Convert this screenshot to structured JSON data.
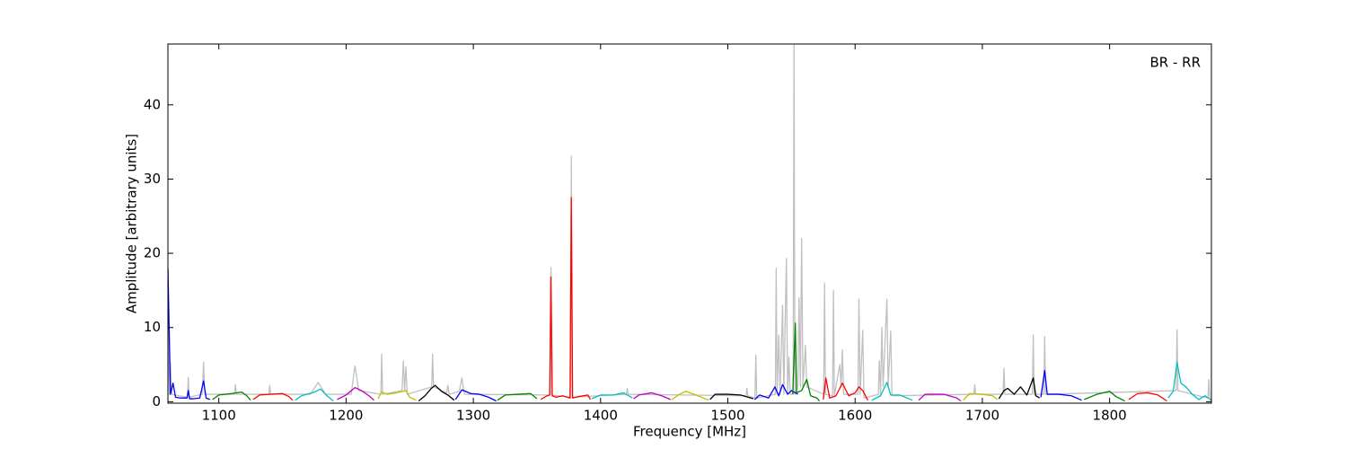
{
  "chart_data": {
    "type": "line",
    "annotation": "BR - RR",
    "xlabel": "Frequency [MHz]",
    "ylabel": "Amplitude [arbitrary units]",
    "xlim": [
      1060,
      1880
    ],
    "ylim": [
      -0.2,
      48.2
    ],
    "xticks": [
      1100,
      1200,
      1300,
      1400,
      1500,
      1600,
      1700,
      1800
    ],
    "yticks": [
      0,
      10,
      20,
      30,
      40
    ],
    "series": [
      {
        "color": "#c0c0c0",
        "x": [
          1060,
          1061,
          1062,
          1063,
          1075.3,
          1076,
          1076.7,
          1087,
          1088,
          1089,
          1112.3,
          1113,
          1113.7,
          1139.3,
          1140,
          1140.7,
          1172,
          1178,
          1184,
          1204,
          1207,
          1210,
          1227.3,
          1228,
          1228.7,
          1244,
          1245,
          1246,
          1247,
          1248,
          1267.3,
          1268,
          1268.7,
          1279,
          1280,
          1281,
          1289,
          1291,
          1293,
          1360.3,
          1361,
          1361.7,
          1376.3,
          1377,
          1377.7,
          1420.3,
          1421,
          1421.7,
          1514.3,
          1515,
          1515.7,
          1521.3,
          1522,
          1522.7,
          1537.3,
          1538,
          1538.7,
          1540,
          1541,
          1543,
          1544,
          1546,
          1547,
          1548,
          1549,
          1551.3,
          1552,
          1552.7,
          1555,
          1556,
          1557,
          1558,
          1559,
          1561,
          1562,
          1575.3,
          1576,
          1576.7,
          1582.3,
          1583,
          1583.7,
          1588,
          1589,
          1590,
          1591,
          1602.3,
          1603,
          1604,
          1606,
          1607,
          1618.3,
          1619,
          1620,
          1621,
          1622,
          1625,
          1626,
          1628,
          1629,
          1693.3,
          1694,
          1694.7,
          1716.3,
          1717,
          1717.7,
          1739.3,
          1740,
          1740.7,
          1748.3,
          1749,
          1749.7,
          1852.3,
          1853,
          1853.7,
          1877.3,
          1878,
          1878.7
        ],
        "values": [
          18,
          1,
          5.3,
          1,
          0.6,
          3.3,
          0.6,
          1,
          5.3,
          1,
          1,
          2.3,
          1,
          1,
          2.2,
          1,
          1,
          2.6,
          1,
          1,
          4.8,
          1.5,
          1,
          6.4,
          1,
          1.5,
          5.5,
          1.5,
          4.7,
          1,
          2,
          6.4,
          2,
          1.2,
          2.2,
          1,
          1.4,
          3.2,
          1,
          0.9,
          18.1,
          0.9,
          0.6,
          33.1,
          0.6,
          1,
          1.8,
          1,
          0.8,
          1.8,
          0.8,
          0.5,
          6.3,
          0.5,
          1,
          18,
          1,
          9,
          1,
          13,
          1,
          19.3,
          1,
          6,
          1,
          1,
          48.5,
          1,
          2,
          14,
          2,
          22,
          2,
          7.6,
          2,
          1,
          16,
          1,
          0.8,
          15,
          0.8,
          5,
          2,
          7,
          1,
          1,
          13.8,
          1,
          9.6,
          0.5,
          1,
          5.5,
          1,
          10,
          2,
          13.8,
          2,
          9.5,
          0.8,
          1,
          2.3,
          1,
          1,
          4.5,
          1,
          1,
          9,
          1,
          1,
          8.8,
          1,
          1.5,
          9.7,
          1.5,
          0.5,
          3,
          0.3
        ]
      },
      {
        "color": "#0000ff",
        "x": [
          1060,
          1062,
          1064,
          1066,
          1070,
          1075,
          1076,
          1077,
          1080,
          1085,
          1088,
          1090,
          1093
        ],
        "values": [
          18,
          1,
          2.5,
          0.6,
          0.5,
          0.5,
          1.5,
          0.4,
          0.4,
          0.5,
          2.8,
          0.5,
          0.3
        ]
      },
      {
        "color": "#008000",
        "x": [
          1095,
          1100,
          1110,
          1118,
          1122,
          1125
        ],
        "values": [
          0.3,
          0.9,
          1.1,
          1.3,
          0.8,
          0.2
        ]
      },
      {
        "color": "#ff0000",
        "x": [
          1127,
          1132,
          1140,
          1150,
          1155,
          1158
        ],
        "values": [
          0.3,
          0.9,
          1.0,
          1.1,
          0.7,
          0.2
        ]
      },
      {
        "color": "#00bfbf",
        "x": [
          1160,
          1165,
          1175,
          1180,
          1185,
          1190
        ],
        "values": [
          0.2,
          0.8,
          1.3,
          1.7,
          0.8,
          0.1
        ]
      },
      {
        "color": "#bf00bf",
        "x": [
          1193,
          1200,
          1207,
          1212,
          1218,
          1222
        ],
        "values": [
          0.3,
          0.9,
          1.9,
          1.5,
          0.8,
          0.2
        ]
      },
      {
        "color": "#bfbf00",
        "x": [
          1225,
          1228,
          1232,
          1240,
          1247,
          1250,
          1255
        ],
        "values": [
          0.4,
          1.3,
          1.0,
          1.2,
          1.5,
          0.6,
          0.2
        ]
      },
      {
        "color": "#000000",
        "x": [
          1257,
          1262,
          1267,
          1270,
          1275,
          1280,
          1285
        ],
        "values": [
          0.1,
          0.8,
          1.8,
          2.2,
          1.4,
          0.9,
          0.2
        ]
      },
      {
        "color": "#0000ff",
        "x": [
          1286,
          1291,
          1298,
          1305,
          1312,
          1318
        ],
        "values": [
          0.3,
          1.6,
          1.1,
          1.0,
          0.6,
          0.1
        ]
      },
      {
        "color": "#008000",
        "x": [
          1319,
          1325,
          1335,
          1345,
          1350
        ],
        "values": [
          0.2,
          0.9,
          1.0,
          1.1,
          0.4
        ]
      },
      {
        "color": "#ff0000",
        "x": [
          1353,
          1358,
          1360,
          1361,
          1362,
          1365,
          1370,
          1376,
          1377,
          1378,
          1383,
          1390,
          1392
        ],
        "values": [
          0.3,
          0.8,
          0.9,
          16.8,
          0.8,
          0.6,
          0.8,
          0.5,
          27.5,
          0.5,
          0.7,
          0.9,
          0.3
        ]
      },
      {
        "color": "#00bfbf",
        "x": [
          1393,
          1400,
          1410,
          1418,
          1425
        ],
        "values": [
          0.4,
          0.9,
          0.9,
          1.2,
          0.5
        ]
      },
      {
        "color": "#bf00bf",
        "x": [
          1426,
          1430,
          1440,
          1448,
          1455
        ],
        "values": [
          0.4,
          0.9,
          1.2,
          0.8,
          0.3
        ]
      },
      {
        "color": "#bfbf00",
        "x": [
          1456,
          1462,
          1467,
          1475,
          1485
        ],
        "values": [
          0.3,
          1.0,
          1.4,
          0.9,
          0.2
        ]
      },
      {
        "color": "#000000",
        "x": [
          1486,
          1490,
          1500,
          1510,
          1520
        ],
        "values": [
          0.3,
          1.0,
          1.0,
          0.9,
          0.4
        ]
      },
      {
        "color": "#0000ff",
        "x": [
          1521,
          1525,
          1532,
          1537,
          1540,
          1543,
          1547,
          1550,
          1555
        ],
        "values": [
          0.3,
          0.9,
          0.5,
          2.0,
          0.8,
          2.3,
          1.0,
          1.5,
          1.0
        ]
      },
      {
        "color": "#008000",
        "x": [
          1551,
          1553,
          1554,
          1558,
          1562,
          1565,
          1570,
          1572
        ],
        "values": [
          1.0,
          10.6,
          1.2,
          1.5,
          3.0,
          0.8,
          0.5,
          0.1
        ]
      },
      {
        "color": "#ff0000",
        "x": [
          1575,
          1577,
          1580,
          1585,
          1590,
          1595,
          1600,
          1603,
          1606,
          1610
        ],
        "values": [
          0.3,
          3.2,
          0.5,
          0.8,
          2.5,
          0.8,
          1.2,
          2.0,
          1.5,
          0.2
        ]
      },
      {
        "color": "#00bfbf",
        "x": [
          1613,
          1620,
          1625,
          1628,
          1635,
          1645
        ],
        "values": [
          0.2,
          0.8,
          2.6,
          0.9,
          0.9,
          0.2
        ]
      },
      {
        "color": "#bf00bf",
        "x": [
          1650,
          1655,
          1670,
          1680,
          1683
        ],
        "values": [
          0.2,
          1.0,
          1.0,
          0.5,
          0.1
        ]
      },
      {
        "color": "#bfbf00",
        "x": [
          1685,
          1690,
          1700,
          1708,
          1712
        ],
        "values": [
          0.2,
          1.1,
          1.0,
          0.8,
          0.3
        ]
      },
      {
        "color": "#000000",
        "x": [
          1713,
          1717,
          1720,
          1725,
          1730,
          1735,
          1740,
          1742,
          1745
        ],
        "values": [
          0.4,
          1.5,
          1.8,
          1.0,
          2.0,
          0.9,
          3.2,
          0.8,
          0.5
        ]
      },
      {
        "color": "#0000ff",
        "x": [
          1746,
          1749,
          1751,
          1760,
          1770,
          1778
        ],
        "values": [
          0.6,
          4.2,
          1.0,
          1.0,
          0.8,
          0.2
        ]
      },
      {
        "color": "#008000",
        "x": [
          1780,
          1790,
          1800,
          1805,
          1812
        ],
        "values": [
          0.3,
          1.0,
          1.4,
          0.7,
          0.1
        ]
      },
      {
        "color": "#ff0000",
        "x": [
          1815,
          1822,
          1830,
          1838,
          1845
        ],
        "values": [
          0.3,
          1.1,
          1.2,
          0.9,
          0.1
        ]
      },
      {
        "color": "#00bfbf",
        "x": [
          1846,
          1850,
          1853,
          1856,
          1860,
          1865,
          1870,
          1875,
          1880
        ],
        "values": [
          0.5,
          1.4,
          5.3,
          2.5,
          2.0,
          1.0,
          0.3,
          0.8,
          0.2
        ]
      }
    ]
  }
}
